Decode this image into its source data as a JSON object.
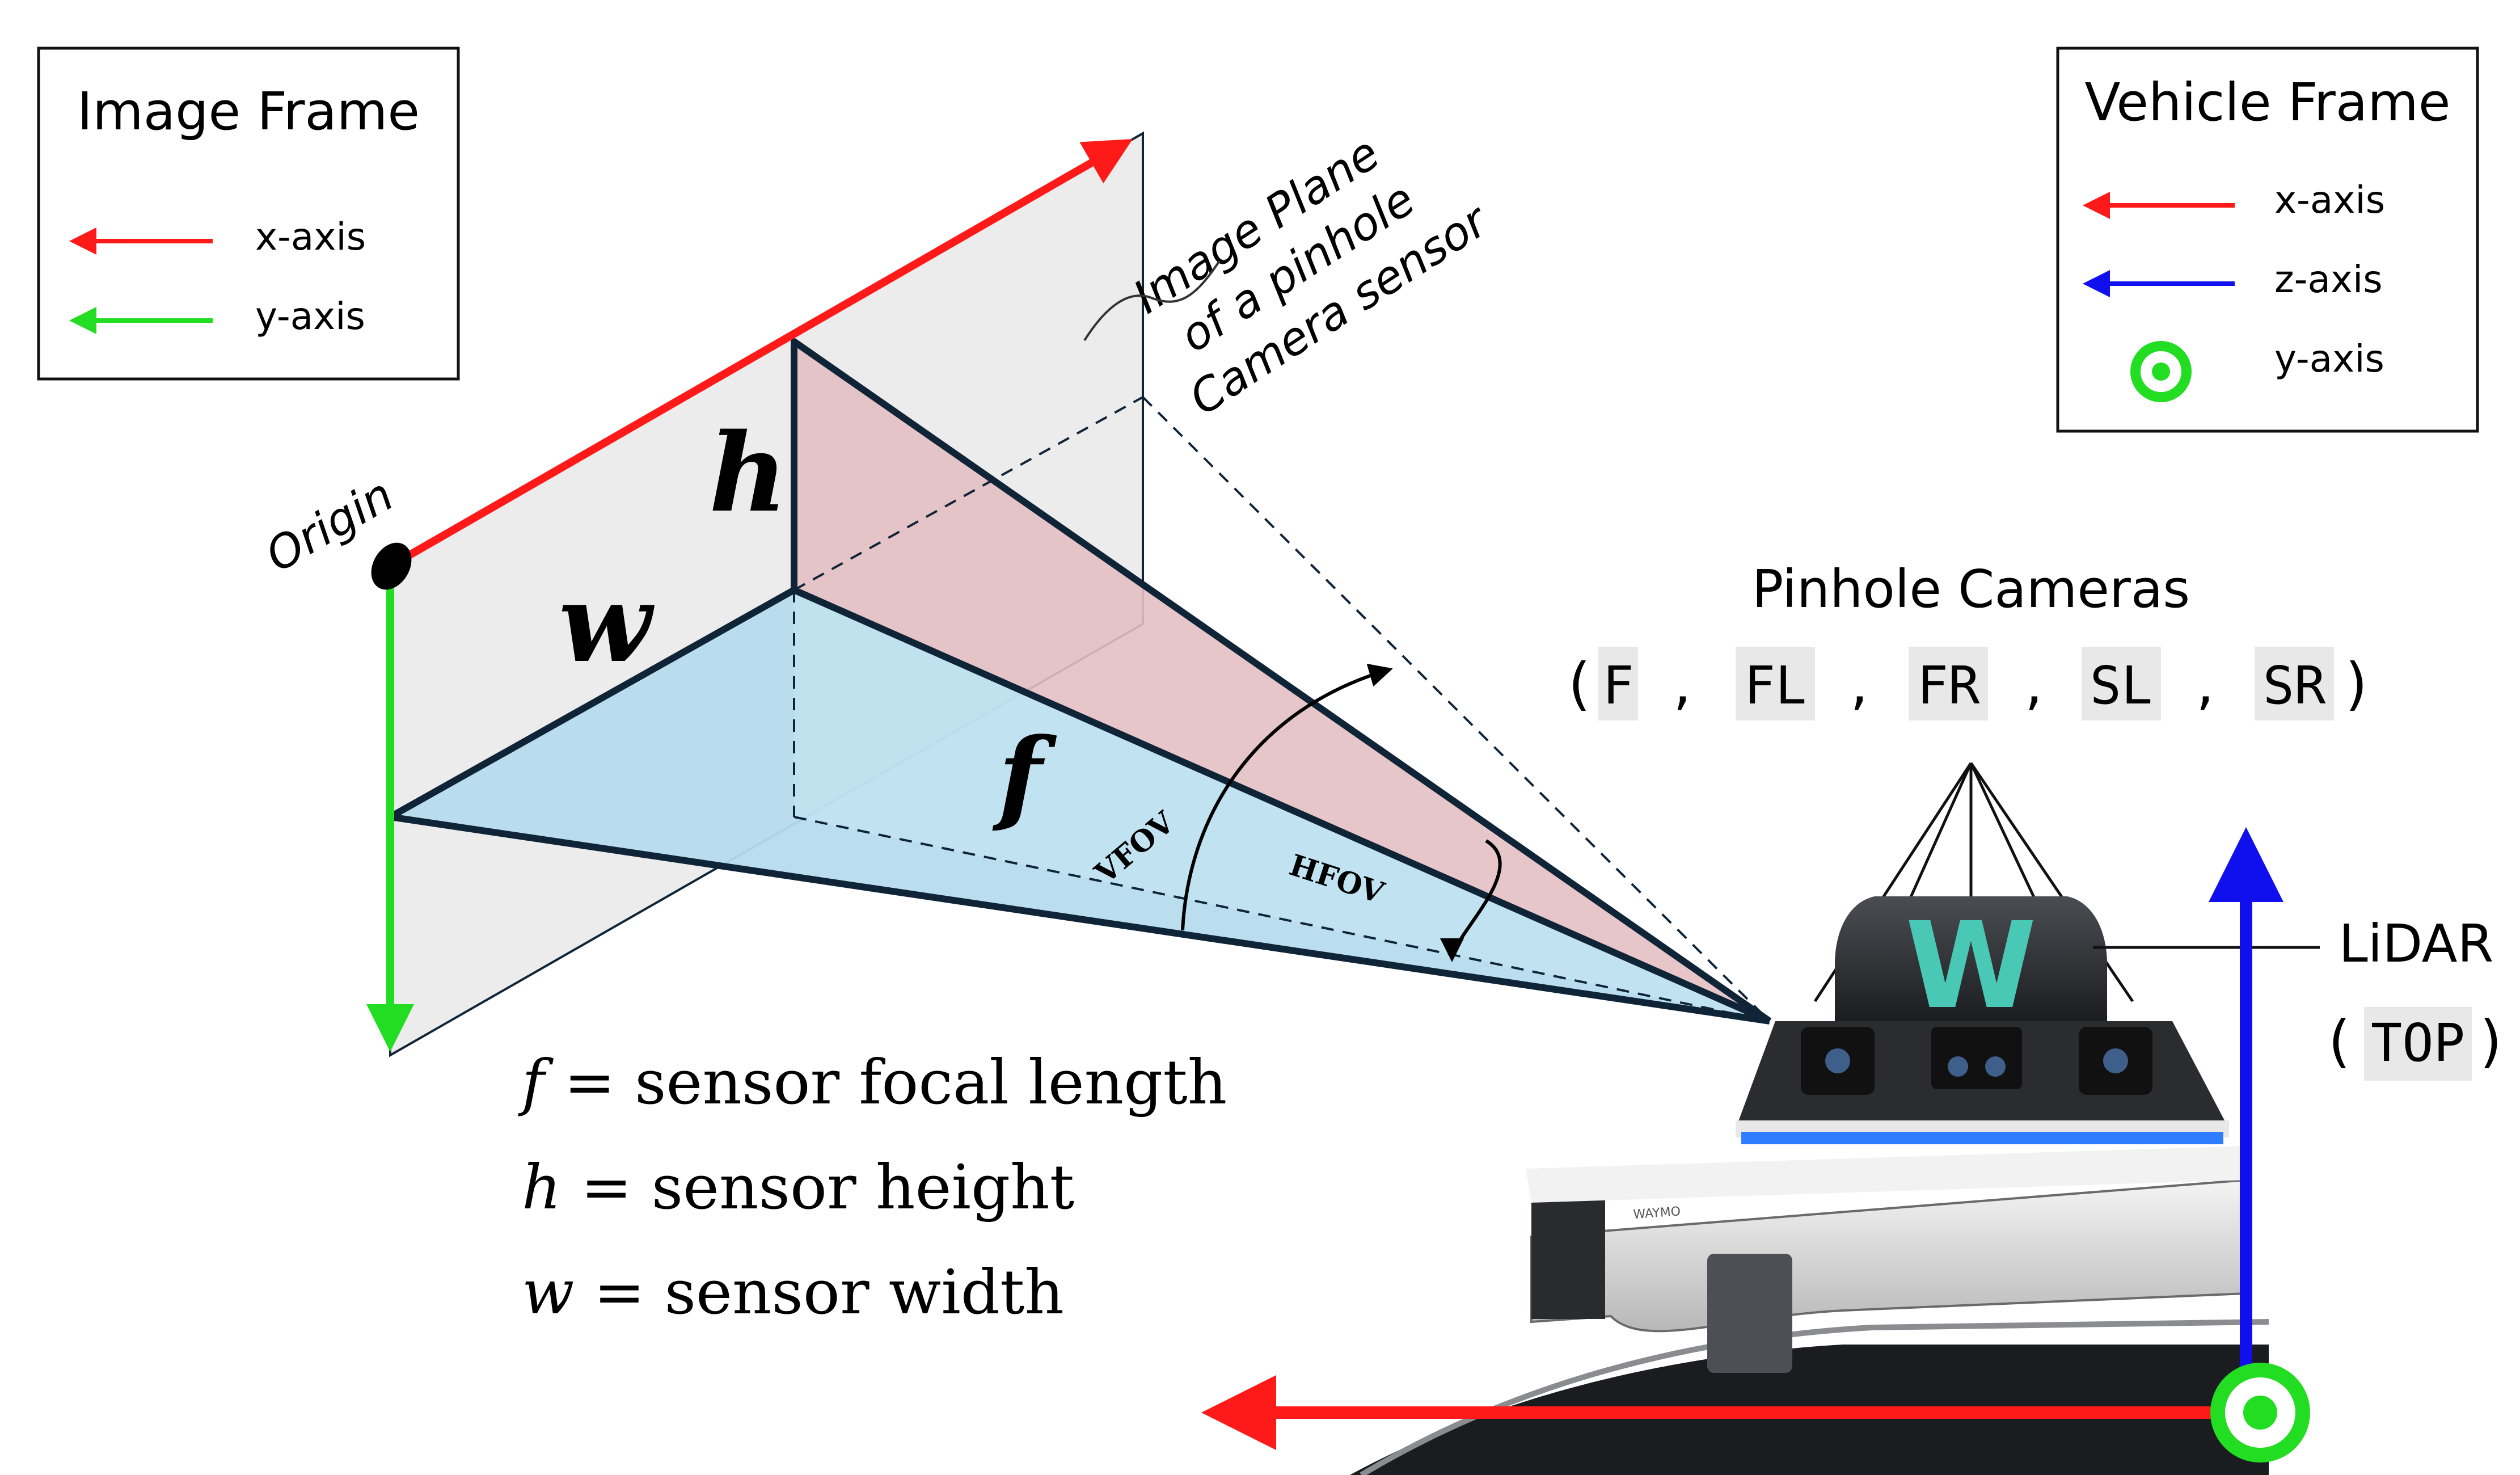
{
  "image_frame_legend": {
    "title": "Image Frame",
    "items": [
      {
        "label": "x-axis",
        "color": "#ff1a1a"
      },
      {
        "label": "y-axis",
        "color": "#22dd22"
      }
    ]
  },
  "vehicle_frame_legend": {
    "title": "Vehicle Frame",
    "items": [
      {
        "label": "x-axis",
        "color": "#ff1a1a"
      },
      {
        "label": "z-axis",
        "color": "#1010ee"
      },
      {
        "label": "y-axis",
        "color": "#22dd22"
      }
    ]
  },
  "image_plane_label": [
    "Image Plane",
    "of a pinhole",
    "Camera sensor"
  ],
  "origin_label": "Origin",
  "symbols": {
    "w": "w",
    "h": "h",
    "f": "f"
  },
  "angles": {
    "vfov": "VFOV",
    "hfov": "HFOV"
  },
  "definitions": [
    {
      "symbol": "f",
      "text": " = sensor focal length"
    },
    {
      "symbol": "h",
      "text": " = sensor height"
    },
    {
      "symbol": "w",
      "text": " = sensor width"
    }
  ],
  "pinhole_cameras": {
    "title": "Pinhole Cameras",
    "open": "(",
    "close": ")",
    "separator": ",",
    "codes": [
      "F",
      "FL",
      "FR",
      "SL",
      "SR"
    ]
  },
  "lidar": {
    "label": "LiDAR",
    "open": "(",
    "code": "TOP",
    "close": ")"
  },
  "vehicle_logo": "W",
  "vehicle_badge": "WAYMO",
  "colors": {
    "x_axis": "#ff1a1a",
    "y_axis": "#22dd22",
    "z_axis": "#1010ee",
    "frustum_top": "#e4c0c3",
    "frustum_side": "#b6dcec",
    "plane": "#ececec",
    "outline": "#102438"
  }
}
